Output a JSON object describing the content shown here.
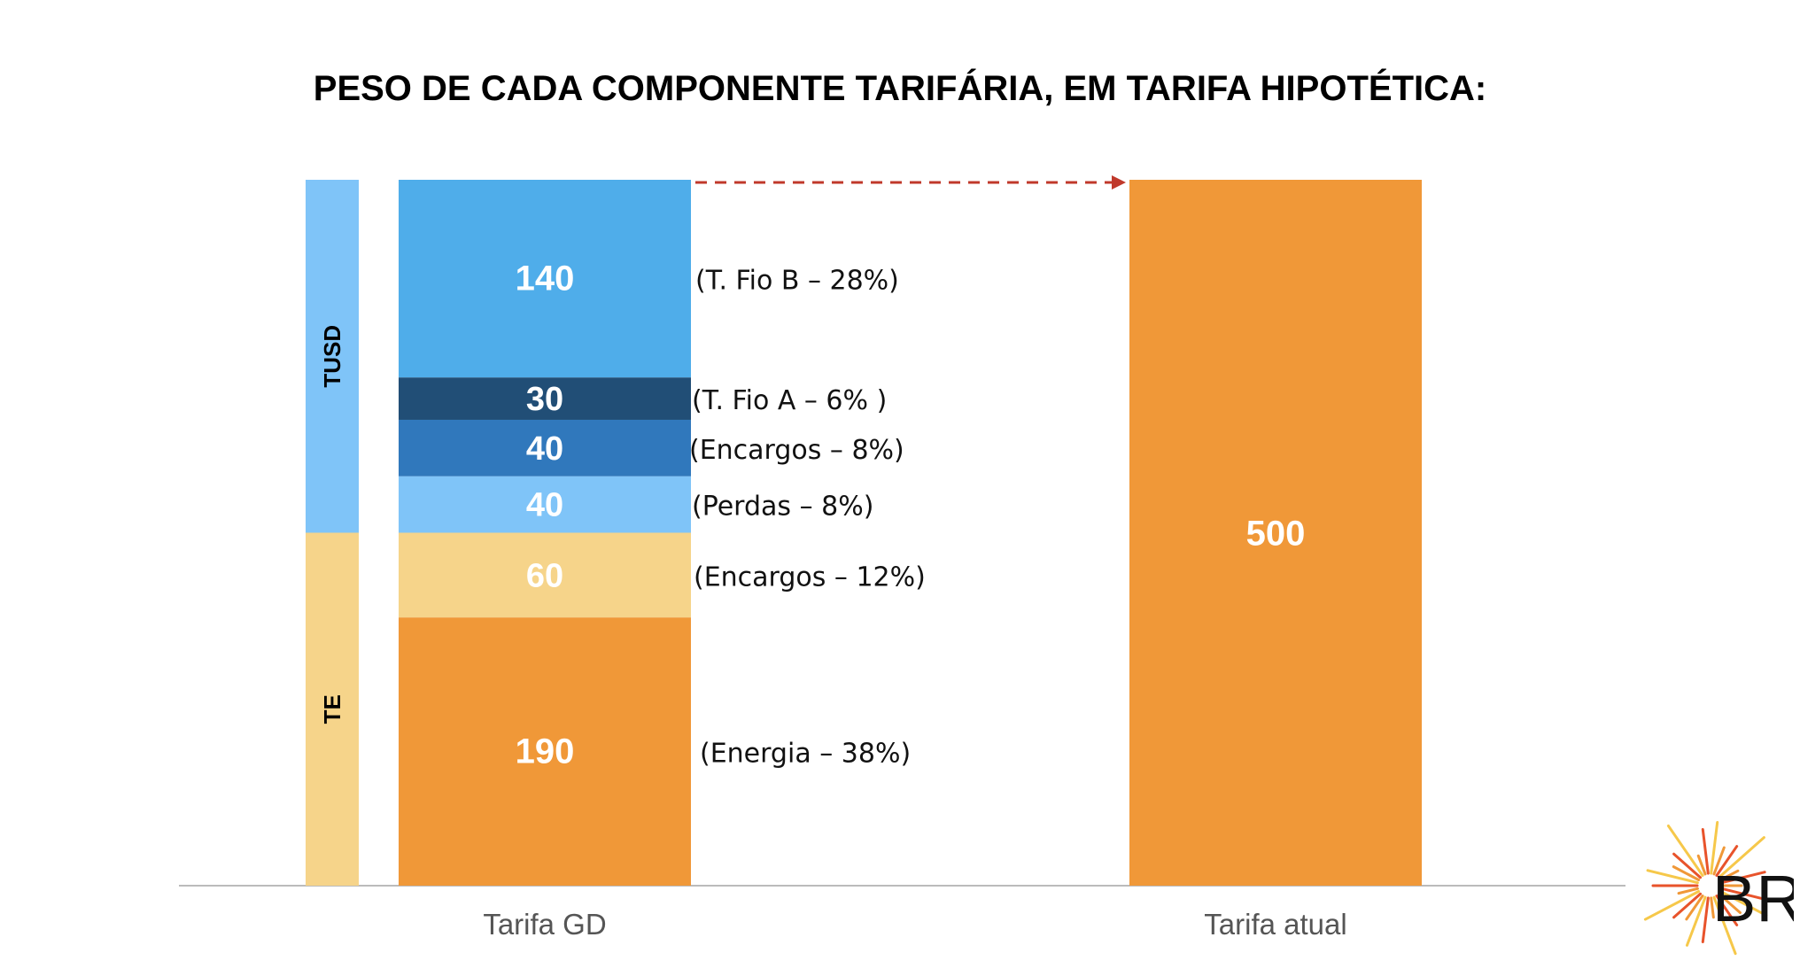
{
  "chart_data": {
    "type": "bar",
    "title": "PESO DE CADA COMPONENTE TARIFÁRIA, EM TARIFA HIPOTÉTICA:",
    "categories": [
      "Tarifa GD",
      "Tarifa atual"
    ],
    "ylim": [
      0,
      500
    ],
    "stacked_bar": {
      "category": "Tarifa GD",
      "segments": [
        {
          "value": 190,
          "label": "(Energia – 38%)",
          "color": "#F09838",
          "group": "TE"
        },
        {
          "value": 60,
          "label": "(Encargos – 12%)",
          "color": "#F6D48A",
          "group": "TE"
        },
        {
          "value": 40,
          "label": "(Perdas – 8%)",
          "color": "#7FC4F8",
          "group": "TUSD"
        },
        {
          "value": 40,
          "label": "(Encargos – 8%)",
          "color": "#3078BC",
          "group": "TUSD"
        },
        {
          "value": 30,
          "label": "(T. Fio A – 6% )",
          "color": "#214E76",
          "group": "TUSD"
        },
        {
          "value": 140,
          "label": "(T. Fio B – 28%)",
          "color": "#4FADEA",
          "group": "TUSD"
        }
      ]
    },
    "single_bar": {
      "category": "Tarifa atual",
      "value": 500,
      "color": "#F09838"
    },
    "groups": [
      {
        "name": "TE",
        "from": 0,
        "to": 250,
        "color": "#F6D48A"
      },
      {
        "name": "TUSD",
        "from": 250,
        "to": 500,
        "color": "#7FC4F8"
      }
    ],
    "arrow_color": "#C0392B",
    "axis_color": "#BBBBBB",
    "grid": false
  },
  "logo": {
    "text": "BR",
    "ray_colors": [
      "#F09838",
      "#E8532B",
      "#F6C84A"
    ]
  }
}
